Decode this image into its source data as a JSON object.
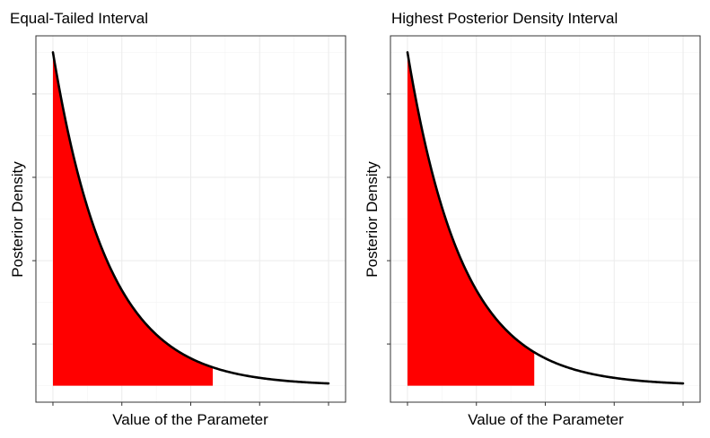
{
  "chart_data": [
    {
      "type": "area",
      "title": "Equal-Tailed Interval",
      "xlabel": "Value of the Parameter",
      "ylabel": "Posterior Density",
      "x_tick_labels": [],
      "y_tick_labels": [],
      "curve": {
        "shape": "exponential-decay",
        "rate": 5,
        "x_range": [
          0,
          1
        ]
      },
      "shaded_interval": [
        0,
        0.58
      ],
      "fill_color": "#ff0000",
      "line_color": "#000000",
      "grid": true
    },
    {
      "type": "area",
      "title": "Highest Posterior Density Interval",
      "xlabel": "Value of the Parameter",
      "ylabel": "Posterior Density",
      "x_tick_labels": [],
      "y_tick_labels": [],
      "curve": {
        "shape": "exponential-decay",
        "rate": 5,
        "x_range": [
          0,
          1
        ]
      },
      "shaded_interval": [
        0,
        0.46
      ],
      "fill_color": "#ff0000",
      "line_color": "#000000",
      "grid": true
    }
  ]
}
